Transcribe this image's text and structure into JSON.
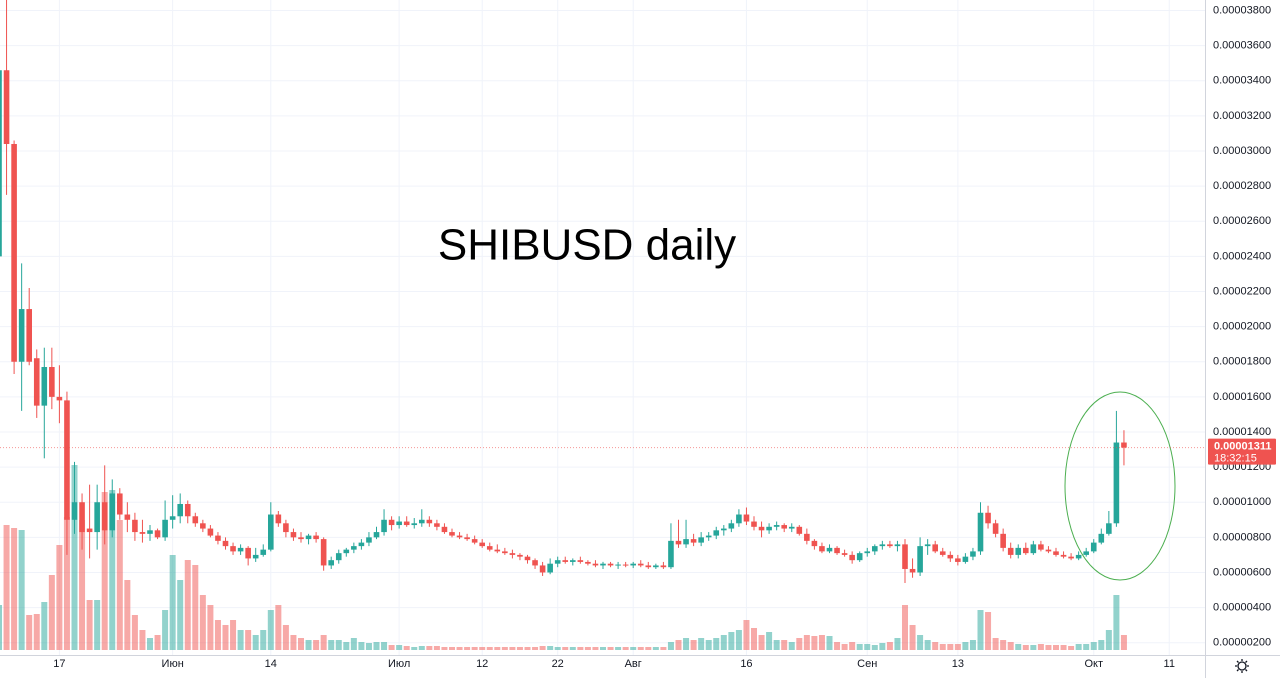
{
  "chart_data": {
    "type": "candlestick",
    "title": "SHIBUSD daily",
    "categories": [
      null,
      null,
      null,
      null,
      null,
      null,
      null,
      null,
      "17",
      null,
      null,
      null,
      null,
      null,
      null,
      null,
      null,
      null,
      null,
      null,
      null,
      null,
      null,
      "Июн",
      null,
      null,
      null,
      null,
      null,
      null,
      null,
      null,
      null,
      null,
      null,
      null,
      "14",
      null,
      null,
      null,
      null,
      null,
      null,
      null,
      null,
      null,
      null,
      null,
      null,
      null,
      null,
      null,
      null,
      "Июл",
      null,
      null,
      null,
      null,
      null,
      null,
      null,
      null,
      null,
      null,
      "12",
      null,
      null,
      null,
      null,
      null,
      null,
      null,
      null,
      null,
      "22",
      null,
      null,
      null,
      null,
      null,
      null,
      null,
      null,
      null,
      "Авг",
      null,
      null,
      null,
      null,
      null,
      null,
      null,
      null,
      null,
      null,
      null,
      null,
      null,
      null,
      "16",
      null,
      null,
      null,
      null,
      null,
      null,
      null,
      null,
      null,
      null,
      null,
      null,
      null,
      null,
      null,
      "Сен",
      null,
      null,
      null,
      null,
      null,
      null,
      null,
      null,
      null,
      null,
      null,
      "13",
      null,
      null,
      null,
      null,
      null,
      null,
      null,
      null,
      null,
      null,
      null,
      null,
      null,
      null,
      null,
      null,
      null,
      "Окт",
      null,
      null,
      null,
      null,
      null,
      null,
      null,
      null,
      null,
      "11",
      null,
      null,
      null,
      null,
      null
    ],
    "open": [
      2.4e-05,
      3.46e-05,
      3.04e-05,
      1.8e-05,
      2.1e-05,
      1.82e-05,
      1.55e-05,
      1.77e-05,
      1.6e-05,
      1.58e-05,
      9e-06,
      1e-05,
      8.5e-06,
      8.3e-06,
      1e-05,
      8.4e-06,
      1.05e-05,
      9.3e-06,
      9e-06,
      8.3e-06,
      8.2e-06,
      8.4e-06,
      8e-06,
      9e-06,
      9.2e-06,
      9.9e-06,
      9.2e-06,
      8.8e-06,
      8.5e-06,
      8.1e-06,
      7.8e-06,
      7.5e-06,
      7.2e-06,
      7.4e-06,
      6.8e-06,
      7e-06,
      7.3e-06,
      9.3e-06,
      8.8e-06,
      8.3e-06,
      8e-06,
      7.9e-06,
      8.1e-06,
      7.9e-06,
      6.4e-06,
      6.7e-06,
      7.1e-06,
      7.3e-06,
      7.5e-06,
      7.7e-06,
      8e-06,
      8.3e-06,
      9e-06,
      8.7e-06,
      8.9e-06,
      8.7e-06,
      8.8e-06,
      9e-06,
      8.8e-06,
      8.6e-06,
      8.3e-06,
      8.1e-06,
      8e-06,
      7.9e-06,
      7.7e-06,
      7.5e-06,
      7.3e-06,
      7.2e-06,
      7.1e-06,
      7e-06,
      6.9e-06,
      6.7e-06,
      6.4e-06,
      6e-06,
      6.5e-06,
      6.7e-06,
      6.6e-06,
      6.7e-06,
      6.6e-06,
      6.5e-06,
      6.4e-06,
      6.5e-06,
      6.4e-06,
      6.45e-06,
      6.4e-06,
      6.5e-06,
      6.4e-06,
      6.3e-06,
      6.4e-06,
      6.3e-06,
      7.8e-06,
      7.6e-06,
      7.9e-06,
      7.7e-06,
      8e-06,
      8.1e-06,
      8.4e-06,
      8.5e-06,
      8.8e-06,
      9.3e-06,
      8.9e-06,
      8.6e-06,
      8.4e-06,
      8.6e-06,
      8.7e-06,
      8.5e-06,
      8.6e-06,
      8.2e-06,
      7.8e-06,
      7.5e-06,
      7.2e-06,
      7.4e-06,
      7.1e-06,
      7e-06,
      6.7e-06,
      7.1e-06,
      7.2e-06,
      7.5e-06,
      7.6e-06,
      7.5e-06,
      7.6e-06,
      6.2e-06,
      6e-06,
      7.5e-06,
      7.6e-06,
      7.2e-06,
      7e-06,
      6.8e-06,
      6.6e-06,
      6.9e-06,
      7.2e-06,
      9.4e-06,
      8.8e-06,
      8.2e-06,
      7.4e-06,
      7e-06,
      7.4e-06,
      7.1e-06,
      7.6e-06,
      7.3e-06,
      7.2e-06,
      7e-06,
      6.9e-06,
      6.8e-06,
      7e-06,
      7.2e-06,
      7.7e-06,
      8.2e-06,
      8.8e-06,
      1.34e-05,
      null,
      null,
      null,
      null,
      null,
      null,
      null,
      null,
      null,
      null,
      null
    ],
    "high": [
      3.5e-05,
      3.88e-05,
      3.06e-05,
      2.36e-05,
      2.22e-05,
      1.87e-05,
      1.88e-05,
      1.88e-05,
      1.78e-05,
      1.63e-05,
      1.23e-05,
      1.05e-05,
      1.1e-05,
      1.1e-05,
      1.21e-05,
      1.13e-05,
      1.08e-05,
      1e-05,
      9.4e-06,
      9e-06,
      8.7e-06,
      8.5e-06,
      1.01e-05,
      1.04e-05,
      1.05e-05,
      1.01e-05,
      9.4e-06,
      9e-06,
      8.7e-06,
      8.3e-06,
      8e-06,
      7.7e-06,
      7.6e-06,
      7.5e-06,
      7.4e-06,
      7.6e-06,
      1e-05,
      9.5e-06,
      9e-06,
      8.5e-06,
      8.3e-06,
      8.2e-06,
      8.3e-06,
      8e-06,
      6.9e-06,
      7.3e-06,
      7.4e-06,
      7.7e-06,
      7.9e-06,
      8.3e-06,
      8.6e-06,
      9.6e-06,
      9.2e-06,
      9.2e-06,
      9.2e-06,
      9.1e-06,
      9.6e-06,
      9.2e-06,
      9e-06,
      8.8e-06,
      8.5e-06,
      8.3e-06,
      8.2e-06,
      8.1e-06,
      7.9e-06,
      7.7e-06,
      7.6e-06,
      7.4e-06,
      7.3e-06,
      7.1e-06,
      7e-06,
      6.8e-06,
      6.6e-06,
      6.8e-06,
      6.9e-06,
      6.9e-06,
      6.8e-06,
      6.9e-06,
      6.7e-06,
      6.7e-06,
      6.6e-06,
      6.6e-06,
      6.6e-06,
      6.6e-06,
      6.6e-06,
      6.7e-06,
      6.6e-06,
      6.5e-06,
      6.6e-06,
      8.8e-06,
      9e-06,
      9e-06,
      8.2e-06,
      8.3e-06,
      8.3e-06,
      8.6e-06,
      8.7e-06,
      9e-06,
      9.6e-06,
      9.7e-06,
      9.2e-06,
      8.9e-06,
      8.8e-06,
      8.9e-06,
      8.8e-06,
      8.8e-06,
      8.7e-06,
      8.5e-06,
      7.9e-06,
      7.7e-06,
      7.6e-06,
      7.5e-06,
      7.3e-06,
      7.2e-06,
      7.2e-06,
      7.4e-06,
      7.6e-06,
      7.8e-06,
      7.8e-06,
      7.8e-06,
      7.9e-06,
      6.8e-06,
      8e-06,
      7.9e-06,
      7.8e-06,
      7.4e-06,
      7.2e-06,
      7e-06,
      7.1e-06,
      7.4e-06,
      1e-05,
      9.8e-06,
      9e-06,
      8.5e-06,
      7.7e-06,
      7.6e-06,
      7.7e-06,
      7.8e-06,
      7.8e-06,
      7.5e-06,
      7.4e-06,
      7.2e-06,
      7.1e-06,
      7.2e-06,
      7.4e-06,
      7.9e-06,
      8.5e-06,
      9.5e-06,
      1.52e-05,
      1.41e-05,
      null,
      null,
      null,
      null,
      null,
      null,
      null,
      null,
      null,
      null,
      null
    ],
    "low": [
      2.35e-05,
      2.75e-05,
      1.73e-05,
      1.52e-05,
      1.78e-05,
      1.48e-05,
      1.25e-05,
      1.53e-05,
      1.45e-05,
      7e-06,
      8.2e-06,
      7.3e-06,
      6.8e-06,
      7.3e-06,
      7.6e-06,
      8e-06,
      9e-06,
      8.3e-06,
      7.8e-06,
      7.7e-06,
      7.8e-06,
      7.9e-06,
      7.8e-06,
      8.5e-06,
      8.8e-06,
      8.8e-06,
      8.6e-06,
      8.3e-06,
      8e-06,
      7.6e-06,
      7.3e-06,
      7e-06,
      7e-06,
      6.4e-06,
      6.6e-06,
      6.9e-06,
      7.2e-06,
      8.6e-06,
      8e-06,
      7.8e-06,
      7.7e-06,
      7.6e-06,
      7.7e-06,
      6.1e-06,
      6.2e-06,
      6.5e-06,
      6.9e-06,
      7.1e-06,
      7.3e-06,
      7.5e-06,
      7.9e-06,
      8.1e-06,
      8.4e-06,
      8.5e-06,
      8.6e-06,
      8.5e-06,
      8.6e-06,
      8.6e-06,
      8.4e-06,
      8.2e-06,
      8e-06,
      7.9e-06,
      7.8e-06,
      7.6e-06,
      7.4e-06,
      7.2e-06,
      7.1e-06,
      7e-06,
      6.8e-06,
      6.7e-06,
      6.5e-06,
      6.2e-06,
      5.8e-06,
      5.9e-06,
      6.3e-06,
      6.5e-06,
      6.4e-06,
      6.5e-06,
      6.4e-06,
      6.3e-06,
      6.2e-06,
      6.3e-06,
      6.2e-06,
      6.3e-06,
      6.25e-06,
      6.3e-06,
      6.2e-06,
      6.2e-06,
      6.2e-06,
      6.2e-06,
      7.4e-06,
      7.4e-06,
      7.5e-06,
      7.5e-06,
      7.8e-06,
      7.9e-06,
      8.1e-06,
      8.3e-06,
      8.6e-06,
      8.7e-06,
      8.4e-06,
      8e-06,
      8.2e-06,
      8.4e-06,
      8.3e-06,
      8.3e-06,
      8.1e-06,
      7.6e-06,
      7.3e-06,
      7.1e-06,
      7.1e-06,
      7e-06,
      6.9e-06,
      6.5e-06,
      6.6e-06,
      6.9e-06,
      7e-06,
      7.3e-06,
      7.4e-06,
      7.2e-06,
      5.4e-06,
      5.7e-06,
      5.8e-06,
      7e-06,
      7.1e-06,
      6.9e-06,
      6.6e-06,
      6.4e-06,
      6.5e-06,
      6.7e-06,
      7e-06,
      8.5e-06,
      8e-06,
      7.2e-06,
      6.8e-06,
      6.8e-06,
      7e-06,
      7e-06,
      7.2e-06,
      7.1e-06,
      6.9e-06,
      6.8e-06,
      6.7e-06,
      6.7e-06,
      6.9e-06,
      7.1e-06,
      7.6e-06,
      8.1e-06,
      8.6e-06,
      1.21e-05,
      null,
      null,
      null,
      null,
      null,
      null,
      null,
      null,
      null,
      null,
      null
    ],
    "close": [
      3.46e-05,
      3.04e-05,
      1.8e-05,
      2.1e-05,
      1.8e-05,
      1.55e-05,
      1.77e-05,
      1.6e-05,
      1.58e-05,
      9e-06,
      1e-05,
      8.3e-06,
      8.3e-06,
      1e-05,
      8.4e-06,
      1.05e-05,
      9.3e-06,
      9e-06,
      8.3e-06,
      8.2e-06,
      8.4e-06,
      8e-06,
      9e-06,
      9.2e-06,
      9.9e-06,
      9.2e-06,
      8.8e-06,
      8.5e-06,
      8.1e-06,
      7.8e-06,
      7.5e-06,
      7.2e-06,
      7.4e-06,
      6.8e-06,
      7e-06,
      7.3e-06,
      9.3e-06,
      8.8e-06,
      8.3e-06,
      8e-06,
      7.9e-06,
      8.1e-06,
      7.9e-06,
      6.4e-06,
      6.7e-06,
      7.1e-06,
      7.3e-06,
      7.5e-06,
      7.7e-06,
      8e-06,
      8.3e-06,
      9e-06,
      8.7e-06,
      8.9e-06,
      8.7e-06,
      8.8e-06,
      9e-06,
      8.8e-06,
      8.6e-06,
      8.3e-06,
      8.1e-06,
      8e-06,
      7.9e-06,
      7.7e-06,
      7.5e-06,
      7.3e-06,
      7.2e-06,
      7.1e-06,
      7e-06,
      6.9e-06,
      6.7e-06,
      6.4e-06,
      6e-06,
      6.5e-06,
      6.7e-06,
      6.6e-06,
      6.7e-06,
      6.6e-06,
      6.5e-06,
      6.4e-06,
      6.5e-06,
      6.4e-06,
      6.45e-06,
      6.4e-06,
      6.5e-06,
      6.4e-06,
      6.3e-06,
      6.4e-06,
      6.3e-06,
      7.8e-06,
      7.6e-06,
      7.9e-06,
      7.7e-06,
      8e-06,
      8.1e-06,
      8.4e-06,
      8.5e-06,
      8.8e-06,
      9.3e-06,
      8.9e-06,
      8.6e-06,
      8.4e-06,
      8.6e-06,
      8.7e-06,
      8.5e-06,
      8.6e-06,
      8.2e-06,
      7.8e-06,
      7.5e-06,
      7.2e-06,
      7.4e-06,
      7.1e-06,
      7e-06,
      6.7e-06,
      7.1e-06,
      7.2e-06,
      7.5e-06,
      7.6e-06,
      7.5e-06,
      7.6e-06,
      6.2e-06,
      6e-06,
      7.5e-06,
      7.6e-06,
      7.2e-06,
      7e-06,
      6.8e-06,
      6.6e-06,
      6.9e-06,
      7.2e-06,
      9.4e-06,
      8.8e-06,
      8.2e-06,
      7.4e-06,
      7e-06,
      7.4e-06,
      7.1e-06,
      7.6e-06,
      7.3e-06,
      7.2e-06,
      7e-06,
      6.9e-06,
      6.8e-06,
      7e-06,
      7.2e-06,
      7.7e-06,
      8.2e-06,
      8.8e-06,
      1.34e-05,
      1.311e-05,
      null,
      null,
      null,
      null,
      null,
      null,
      null,
      null,
      null,
      null,
      null
    ],
    "volume": [
      45,
      125,
      122,
      120,
      35,
      36,
      48,
      75,
      105,
      133,
      185,
      130,
      50,
      50,
      158,
      160,
      130,
      70,
      35,
      20,
      12,
      15,
      40,
      95,
      70,
      90,
      85,
      55,
      45,
      30,
      25,
      30,
      20,
      20,
      15,
      20,
      40,
      45,
      25,
      15,
      12,
      10,
      10,
      15,
      10,
      10,
      8,
      12,
      8,
      7,
      8,
      8,
      5,
      5,
      4,
      3,
      4,
      4,
      4,
      3,
      3,
      3,
      3,
      3,
      3,
      3,
      3,
      3,
      3,
      3,
      3,
      3,
      4,
      4,
      3,
      3,
      3,
      3,
      3,
      3,
      3,
      3,
      3,
      3,
      3,
      3,
      3,
      3,
      3,
      8,
      10,
      12,
      10,
      12,
      10,
      12,
      15,
      18,
      20,
      30,
      22,
      15,
      18,
      10,
      10,
      8,
      12,
      15,
      14,
      15,
      14,
      8,
      6,
      8,
      6,
      6,
      5,
      7,
      8,
      12,
      45,
      25,
      15,
      10,
      8,
      6,
      6,
      6,
      8,
      10,
      40,
      38,
      12,
      10,
      8,
      6,
      5,
      5,
      6,
      5,
      5,
      5,
      4,
      6,
      6,
      8,
      10,
      20,
      55,
      15,
      null,
      null,
      null,
      null,
      null,
      null,
      null,
      null,
      null,
      null,
      null
    ],
    "up_color": "#26a69a",
    "down_color": "#ef5350",
    "ylim": [
      1.3e-06,
      3.86e-05
    ],
    "yticks": [
      {
        "value": 2e-06,
        "label": "0.00000200"
      },
      {
        "value": 4e-06,
        "label": "0.00000400"
      },
      {
        "value": 6e-06,
        "label": "0.00000600"
      },
      {
        "value": 8e-06,
        "label": "0.00000800"
      },
      {
        "value": 1e-05,
        "label": "0.00001000"
      },
      {
        "value": 1.2e-05,
        "label": "0.00001200"
      },
      {
        "value": 1.4e-05,
        "label": "0.00001400"
      },
      {
        "value": 1.6e-05,
        "label": "0.00001600"
      },
      {
        "value": 1.8e-05,
        "label": "0.00001800"
      },
      {
        "value": 2e-05,
        "label": "0.00002000"
      },
      {
        "value": 2.2e-05,
        "label": "0.00002200"
      },
      {
        "value": 2.4e-05,
        "label": "0.00002400"
      },
      {
        "value": 2.6e-05,
        "label": "0.00002600"
      },
      {
        "value": 2.8e-05,
        "label": "0.00002800"
      },
      {
        "value": 3e-05,
        "label": "0.00003000"
      },
      {
        "value": 3.2e-05,
        "label": "0.00003200"
      },
      {
        "value": 3.4e-05,
        "label": "0.00003400"
      },
      {
        "value": 3.6e-05,
        "label": "0.00003600"
      },
      {
        "value": 3.8e-05,
        "label": "0.00003800"
      }
    ],
    "grid": true,
    "last_price": {
      "value": 1.311e-05,
      "label": "0.00001311"
    },
    "countdown": "18:32:15"
  }
}
